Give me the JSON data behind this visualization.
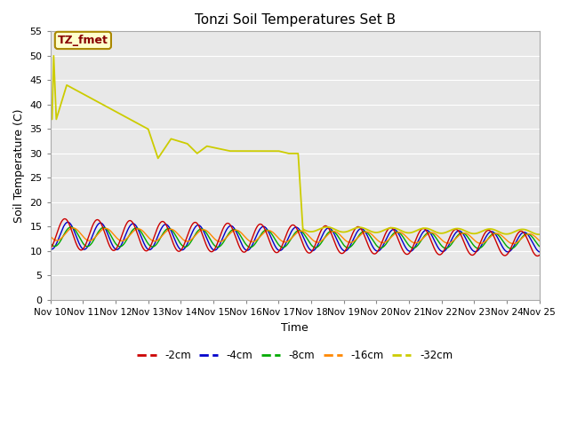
{
  "title": "Tonzi Soil Temperatures Set B",
  "ylabel": "Soil Temperature (C)",
  "xlabel": "Time",
  "ylim": [
    0,
    55
  ],
  "yticks": [
    0,
    5,
    10,
    15,
    20,
    25,
    30,
    35,
    40,
    45,
    50,
    55
  ],
  "xtick_labels": [
    "Nov 10",
    "Nov 11",
    "Nov 12",
    "Nov 13",
    "Nov 14",
    "Nov 15",
    "Nov 16",
    "Nov 17",
    "Nov 18",
    "Nov 19",
    "Nov 20",
    "Nov 21",
    "Nov 22",
    "Nov 23",
    "Nov 24",
    "Nov 25"
  ],
  "series_colors": [
    "#cc0000",
    "#0000cc",
    "#00aa00",
    "#ff8800",
    "#cccc00"
  ],
  "series_labels": [
    "-2cm",
    "-4cm",
    "-8cm",
    "-16cm",
    "-32cm"
  ],
  "annotation_text": "TZ_fmet",
  "annotation_bg": "#ffffcc",
  "annotation_fg": "#880000",
  "bg_color": "#e8e8e8",
  "fig_bg": "#ffffff",
  "grid_color": "#ffffff"
}
